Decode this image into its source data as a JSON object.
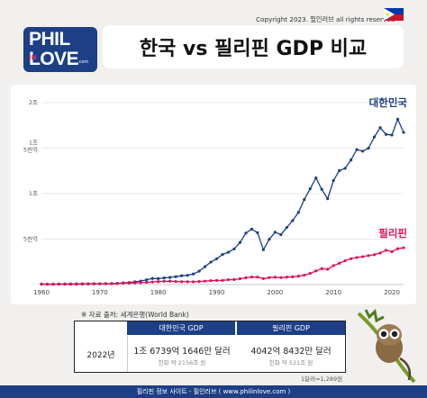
{
  "header": {
    "copyright": "Copyright 2023. 필인러브 all rights reserved",
    "logo_line1": "PHIL",
    "logo_in": "IN",
    "logo_line2": "LOVE",
    "logo_com": ".com",
    "title": "한국 vs 필리핀 GDP 비교"
  },
  "colors": {
    "korea": "#1c3f86",
    "philippines": "#e0105c",
    "brand": "#1c3f86",
    "grid": "#e2e2e2"
  },
  "chart_data": {
    "type": "line",
    "title": "",
    "xlabel": "",
    "ylabel": "",
    "xlim": [
      1960,
      2022
    ],
    "ylim": [
      0,
      2000000000000
    ],
    "y_ticks": [
      0,
      500000000000,
      1000000000000,
      1500000000000,
      2000000000000
    ],
    "y_tick_labels": [
      "",
      "5천억",
      "1조",
      "1조 5천억",
      "2조"
    ],
    "x_ticks": [
      1960,
      1970,
      1980,
      1990,
      2000,
      2010,
      2020
    ],
    "x_tick_labels": [
      "1960",
      "1970",
      "1980",
      "1990",
      "2000",
      "2010",
      "2020"
    ],
    "grid": true,
    "legend": "inline labels at right end of each line",
    "series": [
      {
        "name": "대한민국",
        "color": "#1c3f86",
        "x": [
          1960,
          1961,
          1962,
          1963,
          1964,
          1965,
          1966,
          1967,
          1968,
          1969,
          1970,
          1971,
          1972,
          1973,
          1974,
          1975,
          1976,
          1977,
          1978,
          1979,
          1980,
          1981,
          1982,
          1983,
          1984,
          1985,
          1986,
          1987,
          1988,
          1989,
          1990,
          1991,
          1992,
          1993,
          1994,
          1995,
          1996,
          1997,
          1998,
          1999,
          2000,
          2001,
          2002,
          2003,
          2004,
          2005,
          2006,
          2007,
          2008,
          2009,
          2010,
          2011,
          2012,
          2013,
          2014,
          2015,
          2016,
          2017,
          2018,
          2019,
          2020,
          2021,
          2022
        ],
        "y": [
          4000000000,
          2400000000,
          2800000000,
          4000000000,
          3500000000,
          3100000000,
          3800000000,
          4700000000,
          5900000000,
          7500000000,
          9000000000,
          9900000000,
          10900000000,
          13900000000,
          19200000000,
          21700000000,
          29800000000,
          38400000000,
          51800000000,
          66800000000,
          65400000000,
          72900000000,
          78300000000,
          87000000000,
          96600000000,
          101000000000,
          116000000000,
          147000000000,
          197000000000,
          247000000000,
          283000000000,
          331000000000,
          355000000000,
          392000000000,
          463000000000,
          566000000000,
          610000000000,
          570000000000,
          383000000000,
          497000000000,
          576000000000,
          548000000000,
          627000000000,
          703000000000,
          793000000000,
          935000000000,
          1053000000000,
          1172000000000,
          1047000000000,
          944000000000,
          1144000000000,
          1253000000000,
          1278000000000,
          1370000000000,
          1484000000000,
          1466000000000,
          1500000000000,
          1624000000000,
          1725000000000,
          1651000000000,
          1644000000000,
          1818000000000,
          1673000000000
        ]
      },
      {
        "name": "필리핀",
        "color": "#e0105c",
        "x": [
          1960,
          1961,
          1962,
          1963,
          1964,
          1965,
          1966,
          1967,
          1968,
          1969,
          1970,
          1971,
          1972,
          1973,
          1974,
          1975,
          1976,
          1977,
          1978,
          1979,
          1980,
          1981,
          1982,
          1983,
          1984,
          1985,
          1986,
          1987,
          1988,
          1989,
          1990,
          1991,
          1992,
          1993,
          1994,
          1995,
          1996,
          1997,
          1998,
          1999,
          2000,
          2001,
          2002,
          2003,
          2004,
          2005,
          2006,
          2007,
          2008,
          2009,
          2010,
          2011,
          2012,
          2013,
          2014,
          2015,
          2016,
          2017,
          2018,
          2019,
          2020,
          2021,
          2022
        ],
        "y": [
          6700000000,
          5000000000,
          5500000000,
          6100000000,
          6700000000,
          7300000000,
          8000000000,
          8600000000,
          9400000000,
          10300000000,
          7500000000,
          8200000000,
          8900000000,
          10700000000,
          14500000000,
          15900000000,
          18000000000,
          20600000000,
          23700000000,
          28000000000,
          32500000000,
          35600000000,
          37100000000,
          33200000000,
          31400000000,
          30700000000,
          29900000000,
          33200000000,
          37900000000,
          42600000000,
          44300000000,
          45400000000,
          52900000000,
          54400000000,
          64100000000,
          74100000000,
          82800000000,
          82300000000,
          65200000000,
          76200000000,
          81000000000,
          76300000000,
          81400000000,
          83900000000,
          91400000000,
          103100000000,
          122200000000,
          149400000000,
          174200000000,
          168500000000,
          208400000000,
          234200000000,
          261900000000,
          283900000000,
          297500000000,
          306400000000,
          318600000000,
          328500000000,
          346800000000,
          376800000000,
          361800000000,
          394100000000,
          404300000000
        ]
      }
    ],
    "annotations": [
      "대한민국",
      "필리핀"
    ]
  },
  "source": "※ 자료 출처: 세계은행(World Bank)",
  "table": {
    "headers": [
      "대한민국 GDP",
      "필리핀 GDP"
    ],
    "row": {
      "year": "2022년",
      "korea_value": "1조 6739억 1646만 달러",
      "korea_sub": "한화 약 2156조 원",
      "ph_value": "4042억 8432만 달러",
      "ph_sub": "한화 약 521조 원"
    },
    "rate": "1달러=1,289원"
  },
  "footer": "필리핀 정보 사이트 - 필인러브 ( www.philinlove.com )"
}
